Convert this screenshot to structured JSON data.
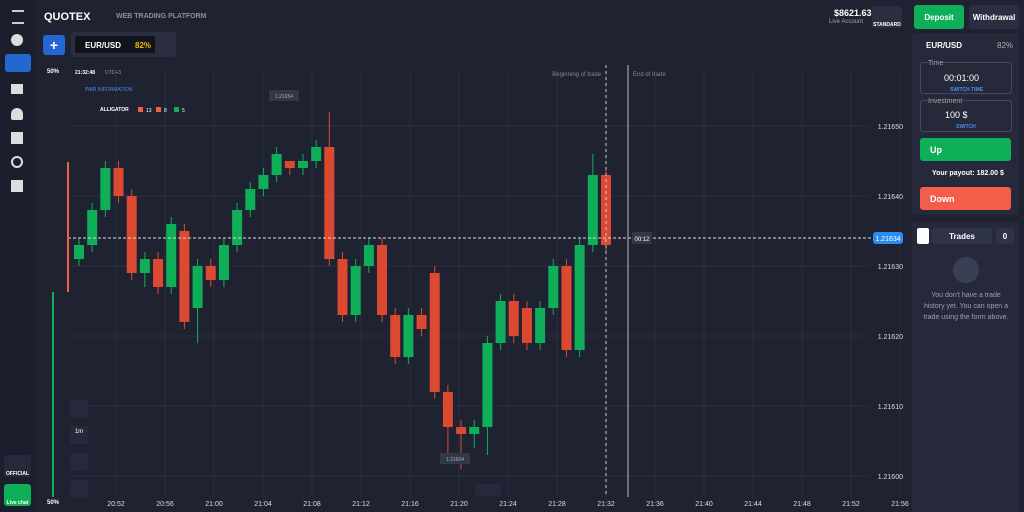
{
  "header": {
    "brand": "QUOTEX",
    "subtitle": "WEB TRADING PLATFORM",
    "balance": "$8621.63",
    "account": "Live Account",
    "tier": "STANDARD",
    "deposit": "Deposit",
    "withdrawal": "Withdrawal"
  },
  "asset_tab": {
    "pair": "EUR/USD",
    "payout": "82%"
  },
  "chart_info": {
    "clock": "21:32:48",
    "timezone": "UTC+3",
    "pair_info": "PAIR INFORMATION",
    "indicator": "ALLIGATOR",
    "params": [
      "13",
      "8",
      "5"
    ],
    "percent_top": "50%",
    "percent_bottom": "50%",
    "high_label": "1.21654",
    "low_label": "1.21604",
    "beginning": "Beginning of trade",
    "end": "End of trade",
    "timer": "00:12",
    "timeframe": "1m"
  },
  "chart_data": {
    "type": "candlestick",
    "current_price": 1.21634,
    "ylim": [
      1.21597,
      1.21658
    ],
    "yticks": [
      {
        "value": 1.216,
        "label": "1.21600"
      },
      {
        "value": 1.2161,
        "label": "1.21610"
      },
      {
        "value": 1.2162,
        "label": "1.21620"
      },
      {
        "value": 1.2163,
        "label": "1.21630"
      },
      {
        "value": 1.2164,
        "label": "1.21640"
      },
      {
        "value": 1.2165,
        "label": "1.21650"
      }
    ],
    "xticks": [
      "20:52",
      "20:56",
      "21:00",
      "21:04",
      "21:08",
      "21:12",
      "21:16",
      "21:20",
      "21:24",
      "21:28",
      "21:32",
      "21:36",
      "21:40",
      "21:44",
      "21:48",
      "21:52",
      "21:56"
    ],
    "up_color": "#0faf59",
    "down_color": "#db4931",
    "open": [
      1.21631,
      1.21633,
      1.21638,
      1.21644,
      1.2164,
      1.21629,
      1.21631,
      1.21627,
      1.21635,
      1.21624,
      1.2163,
      1.21628,
      1.21633,
      1.21638,
      1.21641,
      1.21643,
      1.21645,
      1.21644,
      1.21645,
      1.21647,
      1.21631,
      1.21623,
      1.2163,
      1.21633,
      1.21623,
      1.21617,
      1.21623,
      1.21629,
      1.21612,
      1.21607,
      1.21606,
      1.21607,
      1.21619,
      1.21625,
      1.21624,
      1.21619,
      1.21624,
      1.2163,
      1.21618,
      1.21633,
      1.21643
    ],
    "close": [
      1.21633,
      1.21638,
      1.21644,
      1.2164,
      1.21629,
      1.21631,
      1.21627,
      1.21636,
      1.21622,
      1.2163,
      1.21628,
      1.21633,
      1.21638,
      1.21641,
      1.21643,
      1.21646,
      1.21644,
      1.21645,
      1.21647,
      1.21631,
      1.21623,
      1.2163,
      1.21633,
      1.21623,
      1.21617,
      1.21623,
      1.21621,
      1.21612,
      1.21607,
      1.21606,
      1.21607,
      1.21619,
      1.21625,
      1.2162,
      1.21619,
      1.21624,
      1.2163,
      1.21618,
      1.21633,
      1.21643,
      1.21633
    ],
    "high": [
      1.21634,
      1.21639,
      1.21645,
      1.21645,
      1.21641,
      1.21632,
      1.21632,
      1.21637,
      1.21636,
      1.21631,
      1.21631,
      1.21634,
      1.21639,
      1.21642,
      1.21644,
      1.21647,
      1.21645,
      1.21646,
      1.21648,
      1.21652,
      1.21632,
      1.21631,
      1.21634,
      1.21634,
      1.21624,
      1.21624,
      1.21624,
      1.2163,
      1.21613,
      1.21608,
      1.21608,
      1.2162,
      1.21626,
      1.21626,
      1.21625,
      1.21625,
      1.21631,
      1.21631,
      1.21634,
      1.21646,
      1.21644
    ],
    "low": [
      1.2163,
      1.21632,
      1.21637,
      1.21639,
      1.21628,
      1.21627,
      1.21626,
      1.21626,
      1.21621,
      1.21619,
      1.21627,
      1.21627,
      1.21632,
      1.21637,
      1.2164,
      1.21642,
      1.21643,
      1.21643,
      1.21644,
      1.2163,
      1.21622,
      1.21622,
      1.21629,
      1.21622,
      1.21616,
      1.21616,
      1.2162,
      1.21611,
      1.21603,
      1.21601,
      1.21604,
      1.21603,
      1.21618,
      1.21619,
      1.21618,
      1.21618,
      1.21623,
      1.21617,
      1.21617,
      1.21632,
      1.21632
    ]
  },
  "panel": {
    "pair": "EUR/USD",
    "payout": "82%",
    "time_label": "Time",
    "time_value": "00:01:00",
    "switch_time": "SWITCH TIME",
    "investment_label": "Investment",
    "investment_value": "100 $",
    "switch": "SWITCH",
    "up": "Up",
    "your_payout": "Your payout: 182.00 $",
    "down": "Down",
    "trades": "Trades",
    "trades_count": "0",
    "empty": "You don't have a trade history yet. You can open a trade using the form above."
  },
  "sidebar": {
    "official": "OFFICIAL",
    "live_chat": "Live chat"
  }
}
